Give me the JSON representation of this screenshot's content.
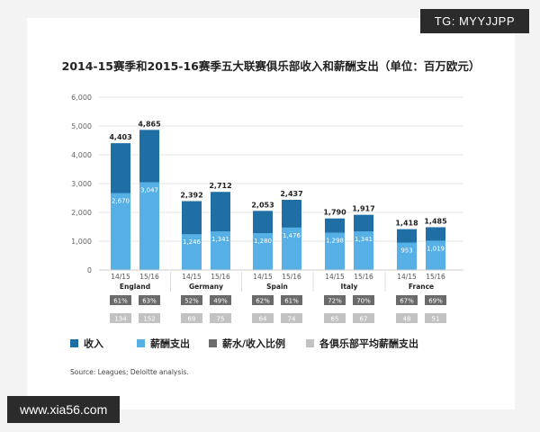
{
  "watermark_top": "TG: MYYJJPP",
  "watermark_bottom": "www.xia56.com",
  "source": "Source: Leagues; Deloitte analysis.",
  "chart_data": {
    "type": "bar",
    "title": "2014-15赛季和2015-16赛季五大联赛俱乐部收入和薪酬支出（单位：百万欧元）",
    "ylim": [
      0,
      6000
    ],
    "y_ticks": [
      "0",
      "1,000",
      "2,000",
      "3,000",
      "4,000",
      "5,000",
      "6,000"
    ],
    "y_tick_values": [
      0,
      1000,
      2000,
      3000,
      4000,
      5000,
      6000
    ],
    "grid": true,
    "legend_position": "bottom",
    "colors": {
      "revenue": "#1f6fa5",
      "wages": "#56b0e6",
      "ratio": "#6b6b6b",
      "avg": "#c2c2c2"
    },
    "groups": [
      {
        "league": "England",
        "seasons": [
          {
            "season": "14/15",
            "revenue": 4403,
            "revenue_label": "4,403",
            "wages": 2670,
            "wages_label": "2,670",
            "ratio": "61%",
            "avg_wage": "134"
          },
          {
            "season": "15/16",
            "revenue": 4865,
            "revenue_label": "4,865",
            "wages": 3047,
            "wages_label": "3,047",
            "ratio": "63%",
            "avg_wage": "152"
          }
        ]
      },
      {
        "league": "Germany",
        "seasons": [
          {
            "season": "14/15",
            "revenue": 2392,
            "revenue_label": "2,392",
            "wages": 1246,
            "wages_label": "1,246",
            "ratio": "52%",
            "avg_wage": "69"
          },
          {
            "season": "15/16",
            "revenue": 2712,
            "revenue_label": "2,712",
            "wages": 1341,
            "wages_label": "1,341",
            "ratio": "49%",
            "avg_wage": "75"
          }
        ]
      },
      {
        "league": "Spain",
        "seasons": [
          {
            "season": "14/15",
            "revenue": 2053,
            "revenue_label": "2,053",
            "wages": 1280,
            "wages_label": "1,280",
            "ratio": "62%",
            "avg_wage": "64"
          },
          {
            "season": "15/16",
            "revenue": 2437,
            "revenue_label": "2,437",
            "wages": 1476,
            "wages_label": "1,476",
            "ratio": "61%",
            "avg_wage": "74"
          }
        ]
      },
      {
        "league": "Italy",
        "seasons": [
          {
            "season": "14/15",
            "revenue": 1790,
            "revenue_label": "1,790",
            "wages": 1298,
            "wages_label": "1,298",
            "ratio": "72%",
            "avg_wage": "65"
          },
          {
            "season": "15/16",
            "revenue": 1917,
            "revenue_label": "1,917",
            "wages": 1341,
            "wages_label": "1,341",
            "ratio": "70%",
            "avg_wage": "67"
          }
        ]
      },
      {
        "league": "France",
        "seasons": [
          {
            "season": "14/15",
            "revenue": 1418,
            "revenue_label": "1,418",
            "wages": 953,
            "wages_label": "953",
            "ratio": "67%",
            "avg_wage": "48"
          },
          {
            "season": "15/16",
            "revenue": 1485,
            "revenue_label": "1,485",
            "wages": 1019,
            "wages_label": "1,019",
            "ratio": "69%",
            "avg_wage": "51"
          }
        ]
      }
    ],
    "legend": [
      {
        "label": "收入",
        "color_key": "revenue"
      },
      {
        "label": "薪酬支出",
        "color_key": "wages"
      },
      {
        "label": "薪水/收入比例",
        "color_key": "ratio"
      },
      {
        "label": "各俱乐部平均薪酬支出",
        "color_key": "avg"
      }
    ]
  }
}
